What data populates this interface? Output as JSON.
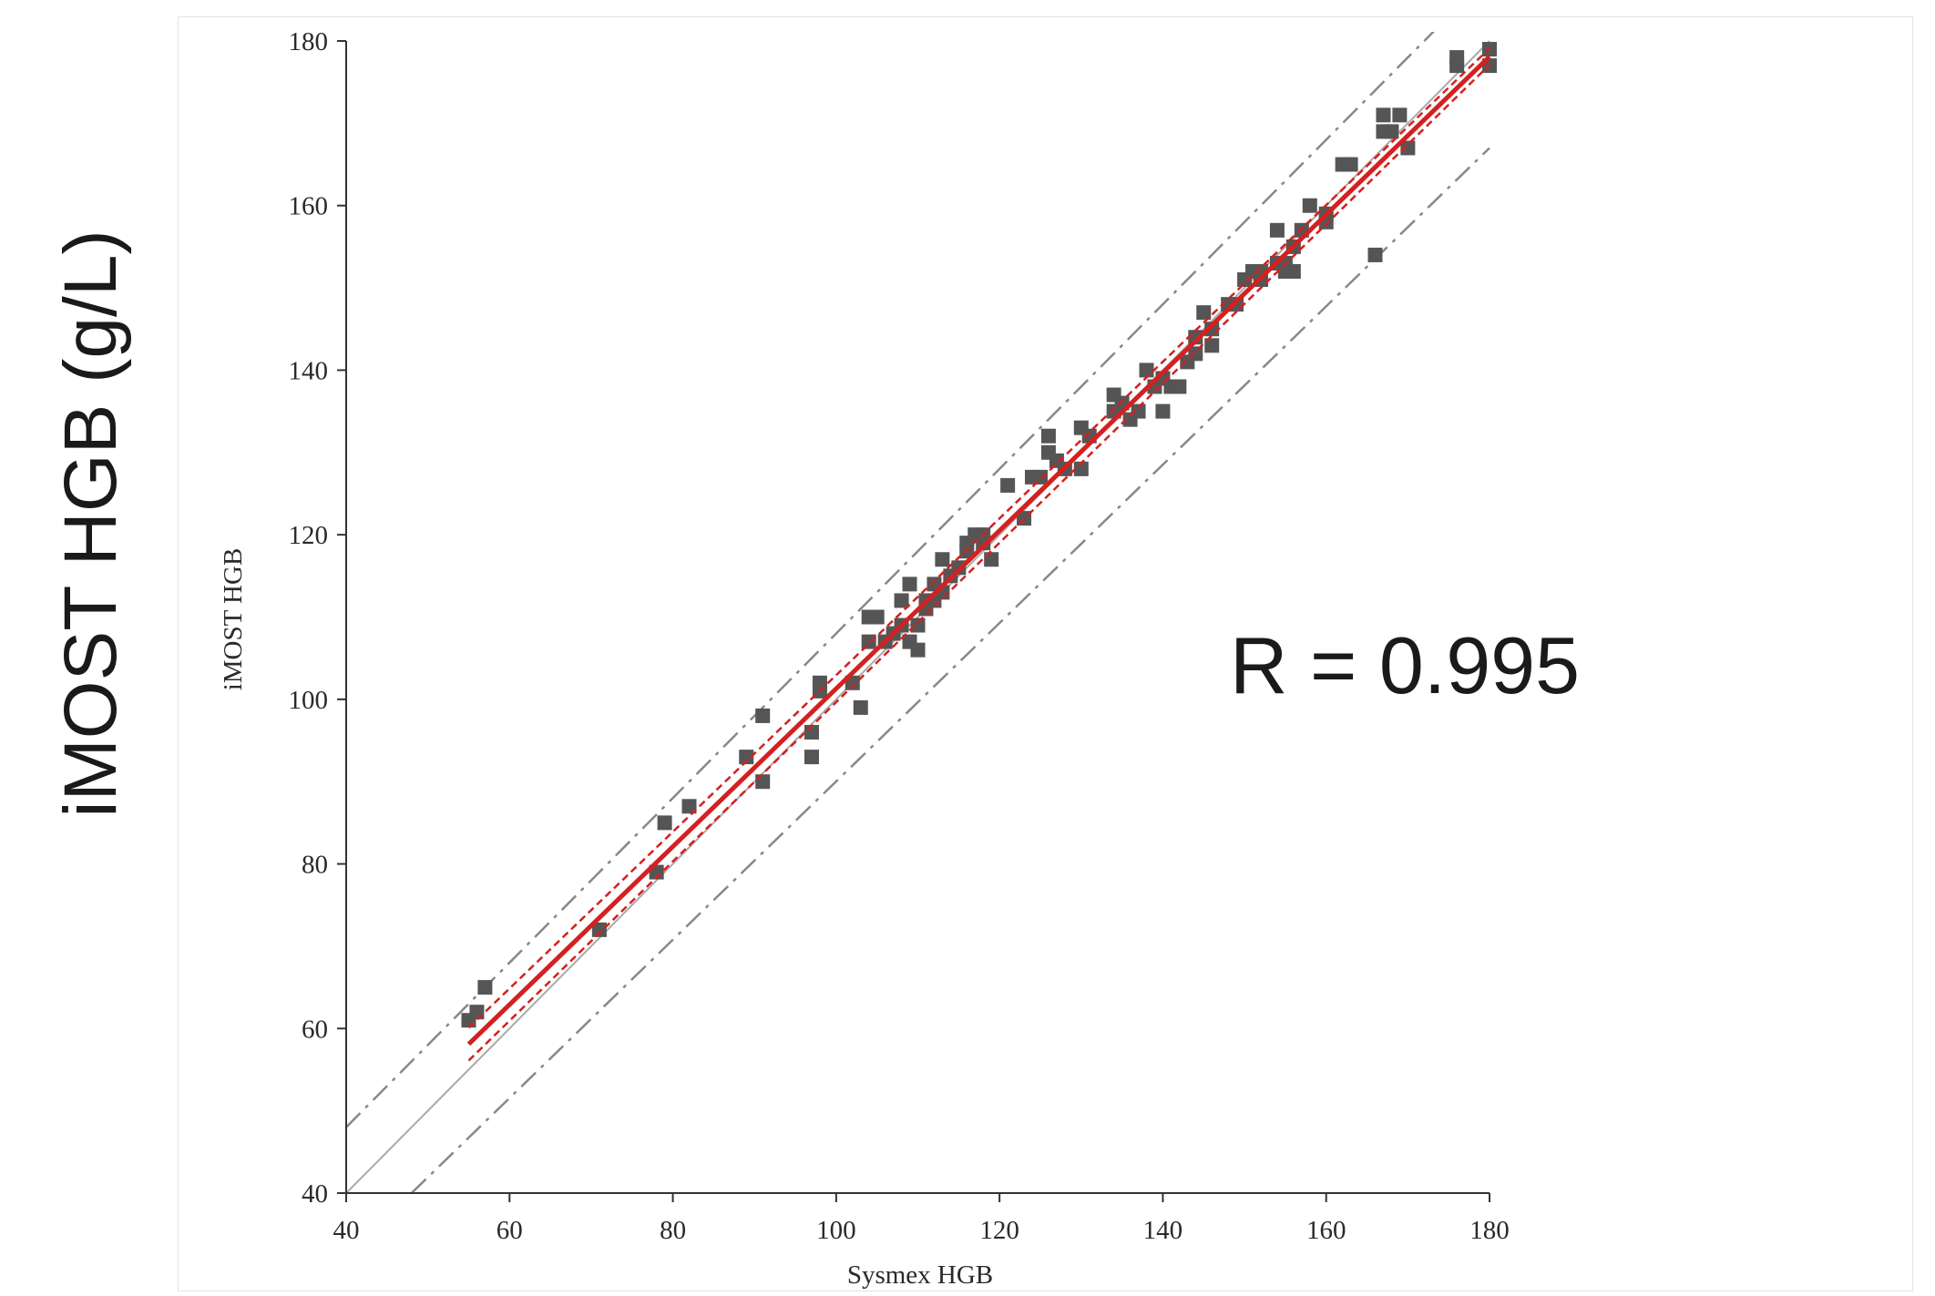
{
  "chart_data": {
    "type": "scatter",
    "big_ylabel": "iMOST HGB (g/L)",
    "xlabel": "Sysmex HGB",
    "ylabel": "iMOST HGB",
    "annotation": "R = 0.995",
    "xlim": [
      40,
      180
    ],
    "ylim": [
      40,
      180
    ],
    "xticks": [
      "40",
      "60",
      "80",
      "100",
      "120",
      "140",
      "160",
      "180"
    ],
    "yticks": [
      "40",
      "60",
      "80",
      "100",
      "120",
      "140",
      "160",
      "180"
    ],
    "grid": false,
    "colors": {
      "points": "#555555",
      "regression": "#d42020",
      "identity": "#aaaaaa",
      "limits": "#888888"
    },
    "regression": {
      "x_range": [
        55,
        180
      ],
      "slope": 0.96,
      "intercept": 5.3
    },
    "confidence_band": {
      "x_range": [
        55,
        180
      ],
      "lower_offset_at_x55": -2.0,
      "upper_offset_at_x55": 2.0,
      "offset_at_x180": 1.0
    },
    "identity_line": {
      "from": [
        40,
        40
      ],
      "to": [
        180,
        180
      ]
    },
    "limits_lines": [
      {
        "from": [
          40,
          48
        ],
        "to": [
          180,
          188
        ]
      },
      {
        "from": [
          48,
          40
        ],
        "to": [
          180,
          167
        ]
      }
    ],
    "points": [
      [
        55,
        61
      ],
      [
        56,
        62
      ],
      [
        57,
        65
      ],
      [
        71,
        72
      ],
      [
        78,
        79
      ],
      [
        79,
        85
      ],
      [
        82,
        87
      ],
      [
        89,
        93
      ],
      [
        91,
        90
      ],
      [
        91,
        98
      ],
      [
        97,
        93
      ],
      [
        97,
        96
      ],
      [
        98,
        101
      ],
      [
        98,
        102
      ],
      [
        102,
        102
      ],
      [
        103,
        99
      ],
      [
        104,
        107
      ],
      [
        104,
        110
      ],
      [
        105,
        110
      ],
      [
        106,
        107
      ],
      [
        107,
        108
      ],
      [
        108,
        109
      ],
      [
        108,
        112
      ],
      [
        109,
        114
      ],
      [
        109,
        107
      ],
      [
        110,
        106
      ],
      [
        110,
        109
      ],
      [
        111,
        112
      ],
      [
        111,
        111
      ],
      [
        112,
        114
      ],
      [
        112,
        112
      ],
      [
        113,
        113
      ],
      [
        113,
        117
      ],
      [
        114,
        115
      ],
      [
        115,
        116
      ],
      [
        116,
        118
      ],
      [
        116,
        119
      ],
      [
        117,
        120
      ],
      [
        118,
        119
      ],
      [
        118,
        120
      ],
      [
        119,
        117
      ],
      [
        121,
        126
      ],
      [
        123,
        122
      ],
      [
        124,
        127
      ],
      [
        125,
        127
      ],
      [
        126,
        130
      ],
      [
        126,
        132
      ],
      [
        127,
        129
      ],
      [
        128,
        128
      ],
      [
        130,
        128
      ],
      [
        130,
        133
      ],
      [
        131,
        132
      ],
      [
        134,
        135
      ],
      [
        134,
        137
      ],
      [
        135,
        136
      ],
      [
        136,
        134
      ],
      [
        137,
        135
      ],
      [
        138,
        140
      ],
      [
        139,
        138
      ],
      [
        140,
        135
      ],
      [
        140,
        139
      ],
      [
        141,
        138
      ],
      [
        142,
        138
      ],
      [
        143,
        141
      ],
      [
        144,
        142
      ],
      [
        144,
        144
      ],
      [
        145,
        147
      ],
      [
        146,
        143
      ],
      [
        146,
        145
      ],
      [
        148,
        148
      ],
      [
        149,
        148
      ],
      [
        150,
        151
      ],
      [
        151,
        152
      ],
      [
        152,
        151
      ],
      [
        152,
        152
      ],
      [
        154,
        153
      ],
      [
        154,
        157
      ],
      [
        155,
        152
      ],
      [
        155,
        153
      ],
      [
        156,
        152
      ],
      [
        156,
        155
      ],
      [
        157,
        157
      ],
      [
        158,
        160
      ],
      [
        160,
        158
      ],
      [
        160,
        159
      ],
      [
        162,
        165
      ],
      [
        163,
        165
      ],
      [
        166,
        154
      ],
      [
        167,
        169
      ],
      [
        167,
        171
      ],
      [
        168,
        169
      ],
      [
        169,
        171
      ],
      [
        170,
        167
      ],
      [
        176,
        177
      ],
      [
        176,
        178
      ],
      [
        180,
        177
      ],
      [
        180,
        179
      ]
    ]
  }
}
